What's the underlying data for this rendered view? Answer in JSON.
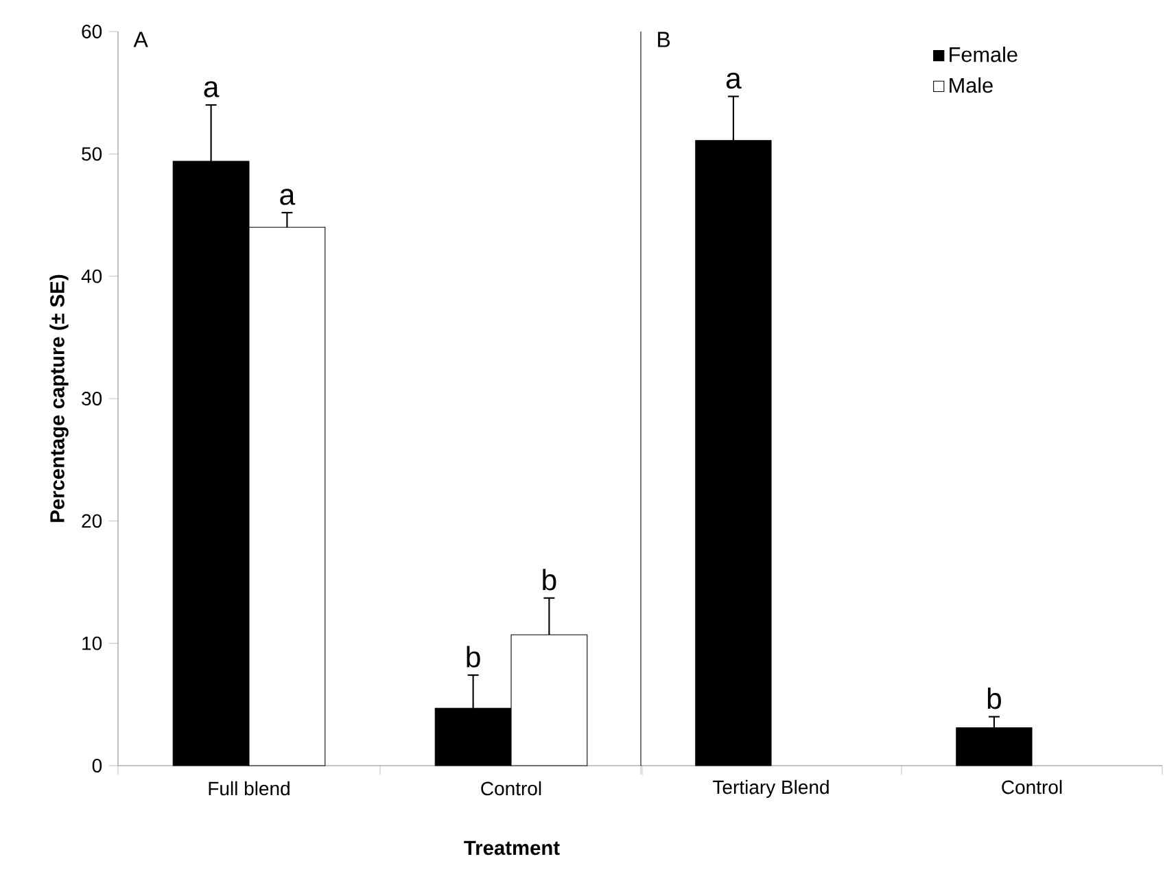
{
  "chart_data": [
    {
      "type": "bar",
      "title": "A",
      "ylabel": "Percentage capture (± SE)",
      "xlabel": "Treatment",
      "categories": [
        "Full blend",
        "Control"
      ],
      "series": [
        {
          "color": "#000000",
          "values": [
            49.4,
            4.7
          ],
          "errors": [
            4.6,
            2.7
          ]
        },
        {
          "color": "#ffffff",
          "values": [
            44.0,
            10.7
          ],
          "errors": [
            1.2,
            3.0
          ]
        }
      ],
      "ylim": [
        0,
        60
      ],
      "yticks": [
        0,
        10,
        20,
        30,
        40,
        50,
        60
      ],
      "annotations": [
        {
          "text": "a",
          "x": "Full blend",
          "y": 49.4
        },
        {
          "text": "a",
          "x": "Full blend",
          "y": 44.0
        },
        {
          "text": "b",
          "x": "Control",
          "y": 4.7
        },
        {
          "text": "b",
          "x": "Control",
          "y": 10.7
        }
      ]
    },
    {
      "type": "bar",
      "title": "B",
      "categories": [
        "Tertiary Blend",
        "Control"
      ],
      "series": [
        {
          "name": "Female",
          "color": "#000000",
          "values": [
            51.1,
            3.1
          ],
          "errors": [
            3.6,
            0.9
          ]
        },
        {
          "name": "Male",
          "color": "#ffffff",
          "values": [
            null,
            null
          ],
          "errors": [
            null,
            null
          ]
        }
      ],
      "ylim": [
        0,
        60
      ],
      "tick_labels": "x",
      "legend": "top right",
      "annotations": [
        {
          "text": "a",
          "x": "Tertiary Blend",
          "y": 51.1
        },
        {
          "text": "b",
          "x": "Control",
          "y": 3.1
        }
      ]
    }
  ]
}
